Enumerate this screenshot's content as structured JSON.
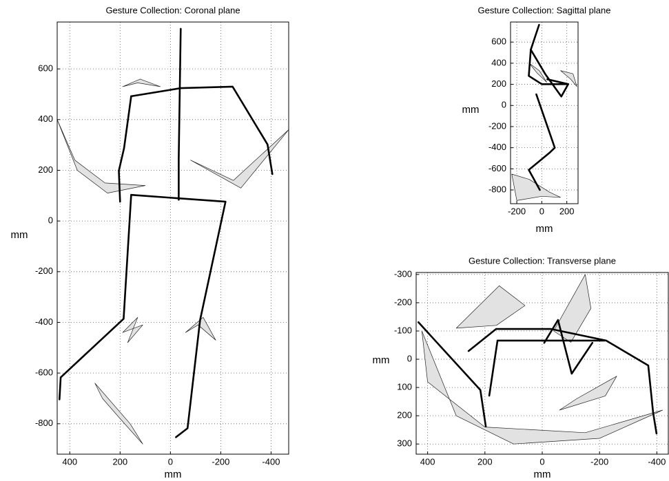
{
  "chart_data": [
    {
      "type": "line",
      "title": "Gesture Collection: Coronal plane",
      "x_label": "mm",
      "y_label": "mm",
      "xlim": [
        450,
        -470
      ],
      "ylim": [
        -920,
        785
      ],
      "xticks": [
        400,
        200,
        0,
        -200,
        -400
      ],
      "yticks": [
        -800,
        -600,
        -400,
        -200,
        0,
        200,
        400,
        600
      ],
      "grid": true,
      "series": [
        {
          "color": "#222222",
          "fill": "#e2e2e2",
          "x": [
            450,
            370,
            250,
            100,
            260,
            380,
            450
          ],
          "y": [
            400,
            200,
            110,
            140,
            150,
            240,
            400
          ]
        },
        {
          "color": "#222222",
          "fill": "#e2e2e2",
          "x": [
            -80,
            -250,
            -470,
            -280,
            -80
          ],
          "y": [
            240,
            160,
            360,
            130,
            240
          ]
        },
        {
          "color": "#222222",
          "fill": "#e2e2e2",
          "x": [
            300,
            160,
            110,
            200,
            270,
            300
          ],
          "y": [
            -640,
            -800,
            -880,
            -780,
            -700,
            -640
          ]
        },
        {
          "color": "#222222",
          "fill": "#e2e2e2",
          "x": [
            190,
            120,
            40,
            130,
            190
          ],
          "y": [
            530,
            560,
            530,
            545,
            530
          ]
        },
        {
          "color": "#222222",
          "fill": "#e2e2e2",
          "x": [
            190,
            130,
            170,
            110,
            190
          ],
          "y": [
            -440,
            -380,
            -480,
            -410,
            -440
          ]
        },
        {
          "color": "#222222",
          "fill": "#e2e2e2",
          "x": [
            -60,
            -130,
            -180,
            -110,
            -60
          ],
          "y": [
            -440,
            -380,
            -470,
            -410,
            -440
          ]
        },
        {
          "color": "#000000",
          "x": [
            -41,
            -33,
            -33
          ],
          "y": [
            758,
            247,
            84
          ]
        },
        {
          "color": "#000000",
          "x": [
            156,
            -41,
            -247,
            -386,
            -405
          ],
          "y": [
            492,
            524,
            530,
            302,
            185
          ]
        },
        {
          "color": "#000000",
          "x": [
            156,
            184,
            205,
            200
          ],
          "y": [
            492,
            288,
            198,
            76
          ]
        },
        {
          "color": "#000000",
          "x": [
            156,
            -219,
            -118,
            -68,
            -22
          ],
          "y": [
            103,
            76,
            -391,
            -818,
            -853
          ]
        },
        {
          "color": "#000000",
          "x": [
            156,
            186,
            436,
            441
          ],
          "y": [
            103,
            -386,
            -617,
            -704
          ]
        }
      ]
    },
    {
      "type": "line",
      "title": "Gesture Collection: Sagittal plane",
      "x_label": "mm",
      "y_label": "mm",
      "xlim": [
        -250,
        290
      ],
      "ylim": [
        -930,
        790
      ],
      "xticks": [
        -200,
        0,
        200
      ],
      "yticks": [
        -800,
        -600,
        -400,
        -200,
        0,
        200,
        400,
        600
      ],
      "grid": true,
      "series": [
        {
          "color": "#222222",
          "fill": "#e2e2e2",
          "x": [
            -240,
            -100,
            60,
            150,
            0,
            -200,
            -240
          ],
          "y": [
            -650,
            -700,
            -820,
            -870,
            -860,
            -900,
            -650
          ]
        },
        {
          "color": "#222222",
          "fill": "#e2e2e2",
          "x": [
            150,
            250,
            280,
            230,
            150
          ],
          "y": [
            330,
            300,
            180,
            250,
            330
          ]
        },
        {
          "color": "#222222",
          "fill": "#e2e2e2",
          "x": [
            -100,
            -20,
            40,
            -40,
            -100
          ],
          "y": [
            400,
            330,
            220,
            310,
            400
          ]
        },
        {
          "color": "#000000",
          "x": [
            -22,
            -88,
            30,
            156,
            211,
            44
          ],
          "y": [
            763,
            528,
            293,
            85,
            202,
            248
          ]
        },
        {
          "color": "#000000",
          "x": [
            -88,
            -104,
            0,
            211
          ],
          "y": [
            528,
            280,
            202,
            202
          ]
        },
        {
          "color": "#000000",
          "x": [
            -44,
            104,
            60,
            -104,
            -16
          ],
          "y": [
            105,
            -400,
            -450,
            -610,
            -800
          ]
        }
      ]
    },
    {
      "type": "line",
      "title": "Gesture Collection: Transverse plane",
      "x_label": "mm",
      "y_label": "mm",
      "xlim": [
        440,
        -440
      ],
      "ylim": [
        336,
        -307
      ],
      "xticks": [
        400,
        200,
        0,
        -200,
        -400
      ],
      "yticks": [
        -300,
        -200,
        -100,
        0,
        100,
        200,
        300
      ],
      "grid": true,
      "series": [
        {
          "color": "#222222",
          "fill": "#e2e2e2",
          "x": [
            420,
            300,
            100,
            -200,
            -420,
            -150,
            200,
            400,
            420
          ],
          "y": [
            -100,
            200,
            300,
            280,
            180,
            260,
            240,
            80,
            -100
          ]
        },
        {
          "color": "#222222",
          "fill": "#e2e2e2",
          "x": [
            300,
            150,
            60,
            160,
            300
          ],
          "y": [
            -110,
            -260,
            -190,
            -120,
            -110
          ]
        },
        {
          "color": "#222222",
          "fill": "#e2e2e2",
          "x": [
            -40,
            -150,
            -170,
            -100,
            -40
          ],
          "y": [
            -100,
            -300,
            -180,
            -60,
            -100
          ]
        },
        {
          "color": "#222222",
          "fill": "#e2e2e2",
          "x": [
            -60,
            -220,
            -260,
            -120,
            -60
          ],
          "y": [
            180,
            130,
            60,
            140,
            180
          ]
        },
        {
          "color": "#000000",
          "x": [
            432,
            216,
            197
          ],
          "y": [
            -131,
            109,
            238
          ]
        },
        {
          "color": "#000000",
          "x": [
            257,
            161,
            -31,
            -223,
            -370,
            -387,
            -399
          ],
          "y": [
            -29,
            -107,
            -107,
            -66,
            22,
            190,
            263
          ]
        },
        {
          "color": "#000000",
          "x": [
            185,
            156,
            -218
          ],
          "y": [
            129,
            -66,
            -66
          ]
        },
        {
          "color": "#000000",
          "x": [
            -7,
            -55,
            -103,
            -175
          ],
          "y": [
            -58,
            -139,
            51,
            -58
          ]
        }
      ]
    }
  ]
}
